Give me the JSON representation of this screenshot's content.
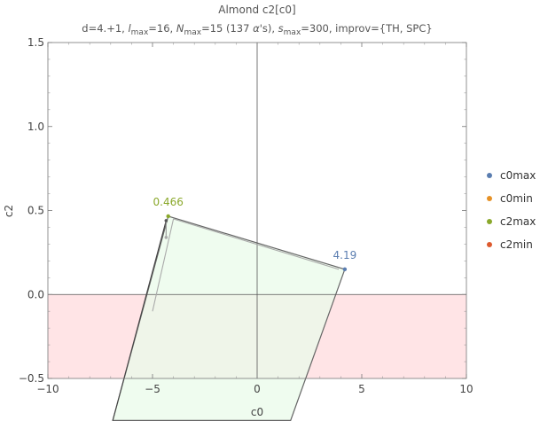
{
  "chart_data": {
    "type": "area",
    "title": "Almond c2[c0]",
    "subtitle": {
      "prefix": "d=4.+1, ",
      "lmax_base": "l",
      "lmax_sub": "max",
      "lmax_val": "=16, ",
      "nmax_base": "N",
      "nmax_sub": "max",
      "nmax_val": "=15 (137 ",
      "alpha": "α",
      "alpha_suffix": "'s), ",
      "smax_base": "s",
      "smax_sub": "max",
      "smax_val": "=300, improv={TH, SPC}"
    },
    "xlabel": "c0",
    "ylabel": "c2",
    "xlim": [
      -10,
      10
    ],
    "ylim": [
      -0.5,
      1.5
    ],
    "xticks": [
      -10,
      -5,
      0,
      5,
      10
    ],
    "xtick_labels": [
      "−10",
      "−5",
      "0",
      "5",
      "10"
    ],
    "yticks": [
      -0.5,
      0.0,
      0.5,
      1.0,
      1.5
    ],
    "ytick_labels": [
      "−0.5",
      "0.0",
      "0.5",
      "1.0",
      "1.5"
    ],
    "regions": [
      {
        "fill": "#e9fbe9",
        "stroke": "#666666",
        "polygon": [
          [
            -4.25,
            0.466
          ],
          [
            4.19,
            0.15
          ],
          [
            1.6,
            -0.75
          ],
          [
            -6.9,
            -0.75
          ]
        ]
      },
      {
        "fill": "#ffe4e6",
        "polygon": [
          [
            -10,
            0.0
          ],
          [
            10,
            0.0
          ],
          [
            10,
            -0.5
          ],
          [
            -10,
            -0.5
          ]
        ]
      }
    ],
    "secondary_lines": [
      {
        "color": "#444444",
        "points": [
          [
            -4.35,
            0.44
          ],
          [
            -6.9,
            -0.75
          ]
        ]
      },
      {
        "color": "#aaaaaa",
        "points": [
          [
            -4.0,
            0.45
          ],
          [
            -5.0,
            -0.1
          ]
        ]
      },
      {
        "color": "#aaaaaa",
        "points": [
          [
            -4.0,
            0.45
          ],
          [
            3.9,
            0.15
          ]
        ]
      },
      {
        "color": "#999999",
        "points": [
          [
            -4.35,
            0.35
          ],
          [
            -4.35,
            0.44
          ]
        ]
      }
    ],
    "series": [
      {
        "name": "c0max",
        "color": "#5a7db0",
        "points": [
          [
            4.19,
            0.15
          ]
        ]
      },
      {
        "name": "c0min",
        "color": "#e69126",
        "points": []
      },
      {
        "name": "c2max",
        "color": "#8aa82b",
        "points": [
          [
            -4.25,
            0.466
          ]
        ]
      },
      {
        "name": "c2min",
        "color": "#dd5a2e",
        "points": []
      }
    ],
    "extra_points": [
      {
        "color": "#555555",
        "point": [
          -4.35,
          0.44
        ]
      },
      {
        "color": "#aaaaaa",
        "point": [
          -4.35,
          0.34
        ]
      }
    ],
    "annotations": [
      {
        "text": "4.19",
        "color": "#5a7db0",
        "at": [
          4.19,
          0.15
        ]
      },
      {
        "text": "0.466",
        "color": "#8aa82b",
        "at": [
          -4.25,
          0.466
        ]
      }
    ],
    "legend_position": "right",
    "grid": false
  }
}
